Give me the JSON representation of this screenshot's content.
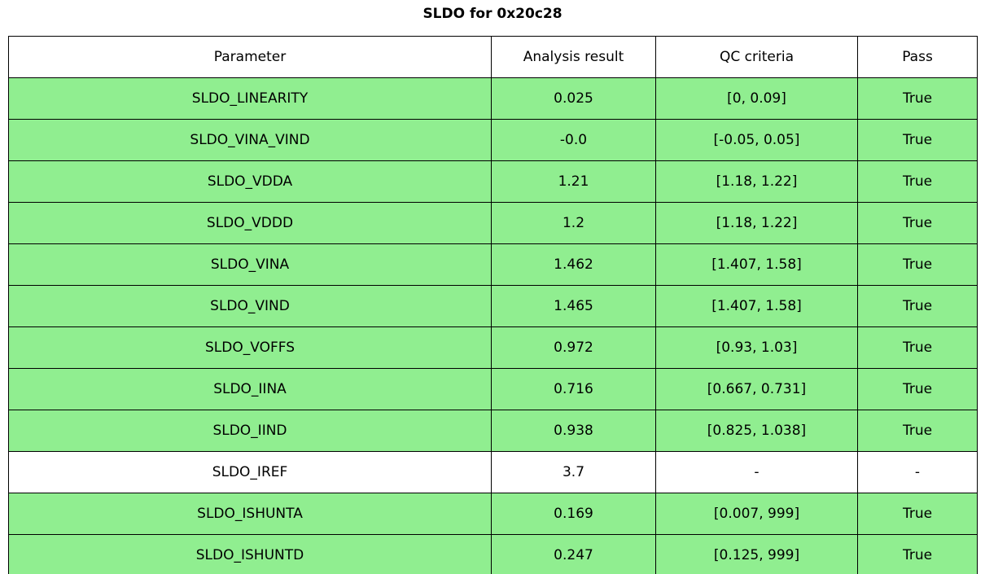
{
  "chart_data": {
    "type": "table",
    "title": "SLDO for 0x20c28",
    "columns": [
      "Parameter",
      "Analysis result",
      "QC criteria",
      "Pass"
    ],
    "rows": [
      {
        "parameter": "SLDO_LINEARITY",
        "analysis_result": "0.025",
        "qc_criteria": "[0, 0.09]",
        "pass": "True",
        "highlighted": true
      },
      {
        "parameter": "SLDO_VINA_VIND",
        "analysis_result": "-0.0",
        "qc_criteria": "[-0.05, 0.05]",
        "pass": "True",
        "highlighted": true
      },
      {
        "parameter": "SLDO_VDDA",
        "analysis_result": "1.21",
        "qc_criteria": "[1.18, 1.22]",
        "pass": "True",
        "highlighted": true
      },
      {
        "parameter": "SLDO_VDDD",
        "analysis_result": "1.2",
        "qc_criteria": "[1.18, 1.22]",
        "pass": "True",
        "highlighted": true
      },
      {
        "parameter": "SLDO_VINA",
        "analysis_result": "1.462",
        "qc_criteria": "[1.407, 1.58]",
        "pass": "True",
        "highlighted": true
      },
      {
        "parameter": "SLDO_VIND",
        "analysis_result": "1.465",
        "qc_criteria": "[1.407, 1.58]",
        "pass": "True",
        "highlighted": true
      },
      {
        "parameter": "SLDO_VOFFS",
        "analysis_result": "0.972",
        "qc_criteria": "[0.93, 1.03]",
        "pass": "True",
        "highlighted": true
      },
      {
        "parameter": "SLDO_IINA",
        "analysis_result": "0.716",
        "qc_criteria": "[0.667, 0.731]",
        "pass": "True",
        "highlighted": true
      },
      {
        "parameter": "SLDO_IIND",
        "analysis_result": "0.938",
        "qc_criteria": "[0.825, 1.038]",
        "pass": "True",
        "highlighted": true
      },
      {
        "parameter": "SLDO_IREF",
        "analysis_result": "3.7",
        "qc_criteria": "-",
        "pass": "-",
        "highlighted": false
      },
      {
        "parameter": "SLDO_ISHUNTA",
        "analysis_result": "0.169",
        "qc_criteria": "[0.007, 999]",
        "pass": "True",
        "highlighted": true
      },
      {
        "parameter": "SLDO_ISHUNTD",
        "analysis_result": "0.247",
        "qc_criteria": "[0.125, 999]",
        "pass": "True",
        "highlighted": true
      }
    ]
  },
  "colors": {
    "pass_row_background": "#90ee90",
    "neutral_row_background": "#ffffff",
    "border": "#000000",
    "text": "#000000"
  }
}
